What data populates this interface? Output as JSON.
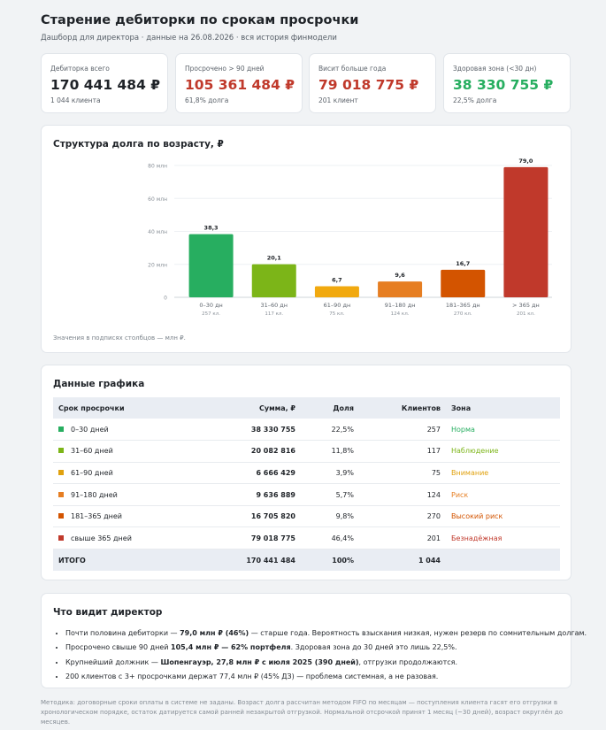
{
  "header": {
    "title": "Старение дебиторки по срокам просрочки",
    "subtitle": "Дашборд для директора · данные на 26.08.2026 · вся история финмодели"
  },
  "kpis": [
    {
      "label": "Дебиторка всего",
      "value": "170 441 484 ₽",
      "sub": "1 044 клиента",
      "color": "#1f2328"
    },
    {
      "label": "Просрочено > 90 дней",
      "value": "105 361 484 ₽",
      "sub": "61,8% долга",
      "color": "#c0392b"
    },
    {
      "label": "Висит больше года",
      "value": "79 018 775 ₽",
      "sub": "201 клиент",
      "color": "#c0392b"
    },
    {
      "label": "Здоровая зона (<30 дн)",
      "value": "38 330 755 ₽",
      "sub": "22,5% долга",
      "color": "#27ae60"
    }
  ],
  "chart_card": {
    "title": "Структура долга по возрасту, ₽",
    "note": "Значения в подписях столбцов — млн ₽."
  },
  "chart_data": {
    "type": "bar",
    "title": "Структура долга по возрасту, ₽",
    "categories": [
      "0–30 дн",
      "31–60 дн",
      "61–90 дн",
      "91–180 дн",
      "181–365 дн",
      "> 365 дн"
    ],
    "sublabels": [
      "257 кл.",
      "117 кл.",
      "75 кл.",
      "124 кл.",
      "270 кл.",
      "201 кл."
    ],
    "values": [
      38.3,
      20.1,
      6.7,
      9.6,
      16.7,
      79.0
    ],
    "value_labels": [
      "38,3",
      "20,1",
      "6,7",
      "9,6",
      "16,7",
      "79,0"
    ],
    "colors": [
      "#27ae60",
      "#7cb518",
      "#f1a90f",
      "#e67e22",
      "#d35400",
      "#c0392b"
    ],
    "yticks": [
      0,
      20,
      40,
      60,
      80
    ],
    "ytick_labels": [
      "0",
      "20 млн",
      "40 млн",
      "60 млн",
      "80 млн"
    ],
    "ylim": [
      0,
      80
    ],
    "grid": true
  },
  "table": {
    "title": "Данные графика",
    "columns": [
      "Срок просрочки",
      "Сумма, ₽",
      "Доля",
      "Клиентов",
      "Зона"
    ],
    "rows": [
      {
        "label": "0–30 дней",
        "sum": "38 330 755",
        "share": "22,5%",
        "clients": "257",
        "zone": "Норма",
        "color": "#27ae60"
      },
      {
        "label": "31–60 дней",
        "sum": "20 082 816",
        "share": "11,8%",
        "clients": "117",
        "zone": "Наблюдение",
        "color": "#7cb518"
      },
      {
        "label": "61–90 дней",
        "sum": "6 666 429",
        "share": "3,9%",
        "clients": "75",
        "zone": "Внимание",
        "color": "#e0a10e"
      },
      {
        "label": "91–180 дней",
        "sum": "9 636 889",
        "share": "5,7%",
        "clients": "124",
        "zone": "Риск",
        "color": "#e67e22"
      },
      {
        "label": "181–365 дней",
        "sum": "16 705 820",
        "share": "9,8%",
        "clients": "270",
        "zone": "Высокий риск",
        "color": "#d35400"
      },
      {
        "label": "свыше 365 дней",
        "sum": "79 018 775",
        "share": "46,4%",
        "clients": "201",
        "zone": "Безнадёжная",
        "color": "#c0392b"
      }
    ],
    "total": {
      "label": "ИТОГО",
      "sum": "170 441 484",
      "share": "100%",
      "clients": "1 044"
    }
  },
  "insights": {
    "title": "Что видит директор",
    "items": [
      {
        "pre": "Почти половина дебиторки — ",
        "bold": "79,0 млн ₽ (46%)",
        "post": " — старше года. Вероятность взыскания низкая, нужен резерв по сомнительным долгам."
      },
      {
        "pre": "Просрочено свыше 90 дней ",
        "bold": "105,4 млн ₽ — 62% портфеля",
        "post": ". Здоровая зона до 30 дней это лишь 22,5%."
      },
      {
        "pre": "Крупнейший должник — ",
        "bold": "Шопенгауэр, 27,8 млн ₽ с июля 2025 (390 дней)",
        "post": ", отгрузки продолжаются."
      },
      {
        "pre": "200 клиентов с 3+ просрочками держат 77,4 млн ₽ (45% ДЗ) — проблема системная, а не разовая.",
        "bold": "",
        "post": ""
      }
    ]
  },
  "footer": {
    "line1": "Методика: договорные сроки оплаты в системе не заданы. Возраст долга рассчитан методом FIFO по месяцам — поступления клиента гасят его отгрузки в",
    "line2": "хронологическом порядке, остаток датируется самой ранней незакрытой отгрузкой. Нормальной отсрочкой принят 1 месяц (~30 дней), возраст округлён до месяцев."
  }
}
